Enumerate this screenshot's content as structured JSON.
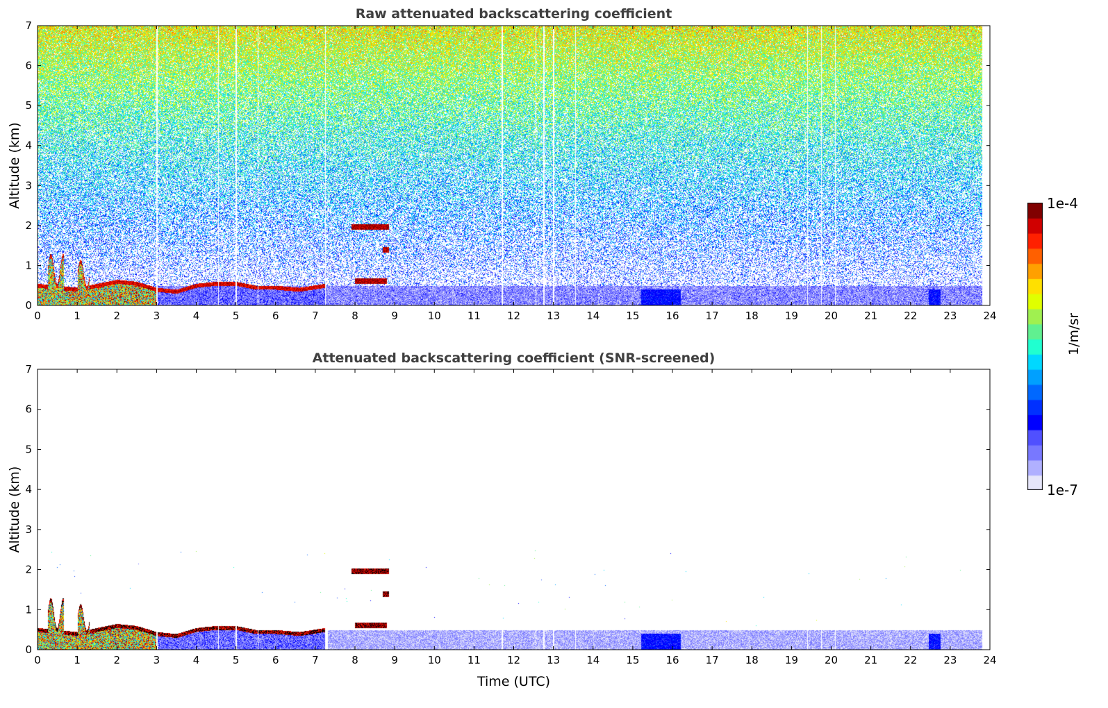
{
  "chart_data": {
    "type": "heatmap",
    "panels": [
      {
        "id": "raw",
        "title": "Raw attenuated backscattering coefficient",
        "xlabel": "",
        "ylabel": "Altitude (km)",
        "xlim": [
          0,
          24
        ],
        "ylim": [
          0,
          7
        ],
        "screened": false
      },
      {
        "id": "snr",
        "title": "Attenuated backscattering coefficient (SNR-screened)",
        "xlabel": "Time (UTC)",
        "ylabel": "Altitude (km)",
        "xlim": [
          0,
          24
        ],
        "ylim": [
          0,
          7
        ],
        "screened": true
      }
    ],
    "xticks": [
      0,
      1,
      2,
      3,
      4,
      5,
      6,
      7,
      8,
      9,
      10,
      11,
      12,
      13,
      14,
      15,
      16,
      17,
      18,
      19,
      20,
      21,
      22,
      23,
      24
    ],
    "yticks": [
      0,
      1,
      2,
      3,
      4,
      5,
      6,
      7
    ],
    "colorbar": {
      "label": "1/m/sr",
      "min_label": "1e-7",
      "max_label": "1e-4",
      "scale": "log",
      "range": [
        1e-07,
        0.0001
      ],
      "colors": [
        "#e6e6fa",
        "#b0b0ff",
        "#7878ff",
        "#5050ff",
        "#0000ff",
        "#0030ff",
        "#0068ff",
        "#00a0ff",
        "#00d8ff",
        "#20ffd0",
        "#60f090",
        "#a0f050",
        "#e0ff00",
        "#ffe000",
        "#ffa000",
        "#ff6000",
        "#ff2000",
        "#d00000",
        "#800000"
      ]
    },
    "data_end_hour": 23.8,
    "features": {
      "aerosol_layer_top_km": [
        [
          0,
          0.5
        ],
        [
          0.5,
          0.45
        ],
        [
          1,
          0.4
        ],
        [
          1.5,
          0.5
        ],
        [
          2,
          0.6
        ],
        [
          2.5,
          0.55
        ],
        [
          3,
          0.4
        ],
        [
          3.5,
          0.35
        ],
        [
          4,
          0.5
        ],
        [
          4.5,
          0.55
        ],
        [
          5,
          0.55
        ],
        [
          5.5,
          0.45
        ],
        [
          6,
          0.45
        ],
        [
          6.6,
          0.4
        ],
        [
          7.25,
          0.5
        ]
      ],
      "convective_plumes": [
        {
          "t0": 0.25,
          "t1": 0.65,
          "top_km": 1.25
        },
        {
          "t0": 1.0,
          "t1": 1.3,
          "top_km": 1.1
        }
      ],
      "cloud_layers": [
        {
          "t0": 7.9,
          "t1": 8.85,
          "alt_km": 1.97
        },
        {
          "t0": 8.0,
          "t1": 8.8,
          "alt_km": 0.62
        },
        {
          "t0": 8.7,
          "t1": 8.85,
          "alt_km": 1.4
        }
      ],
      "enhanced_surface_region": [
        {
          "t0": 22.45,
          "t1": 22.75,
          "top_km": 0.4
        },
        {
          "t0": 15.2,
          "t1": 16.2,
          "top_km": 0.4
        }
      ],
      "surface_layer_top_km": 0.5
    }
  }
}
